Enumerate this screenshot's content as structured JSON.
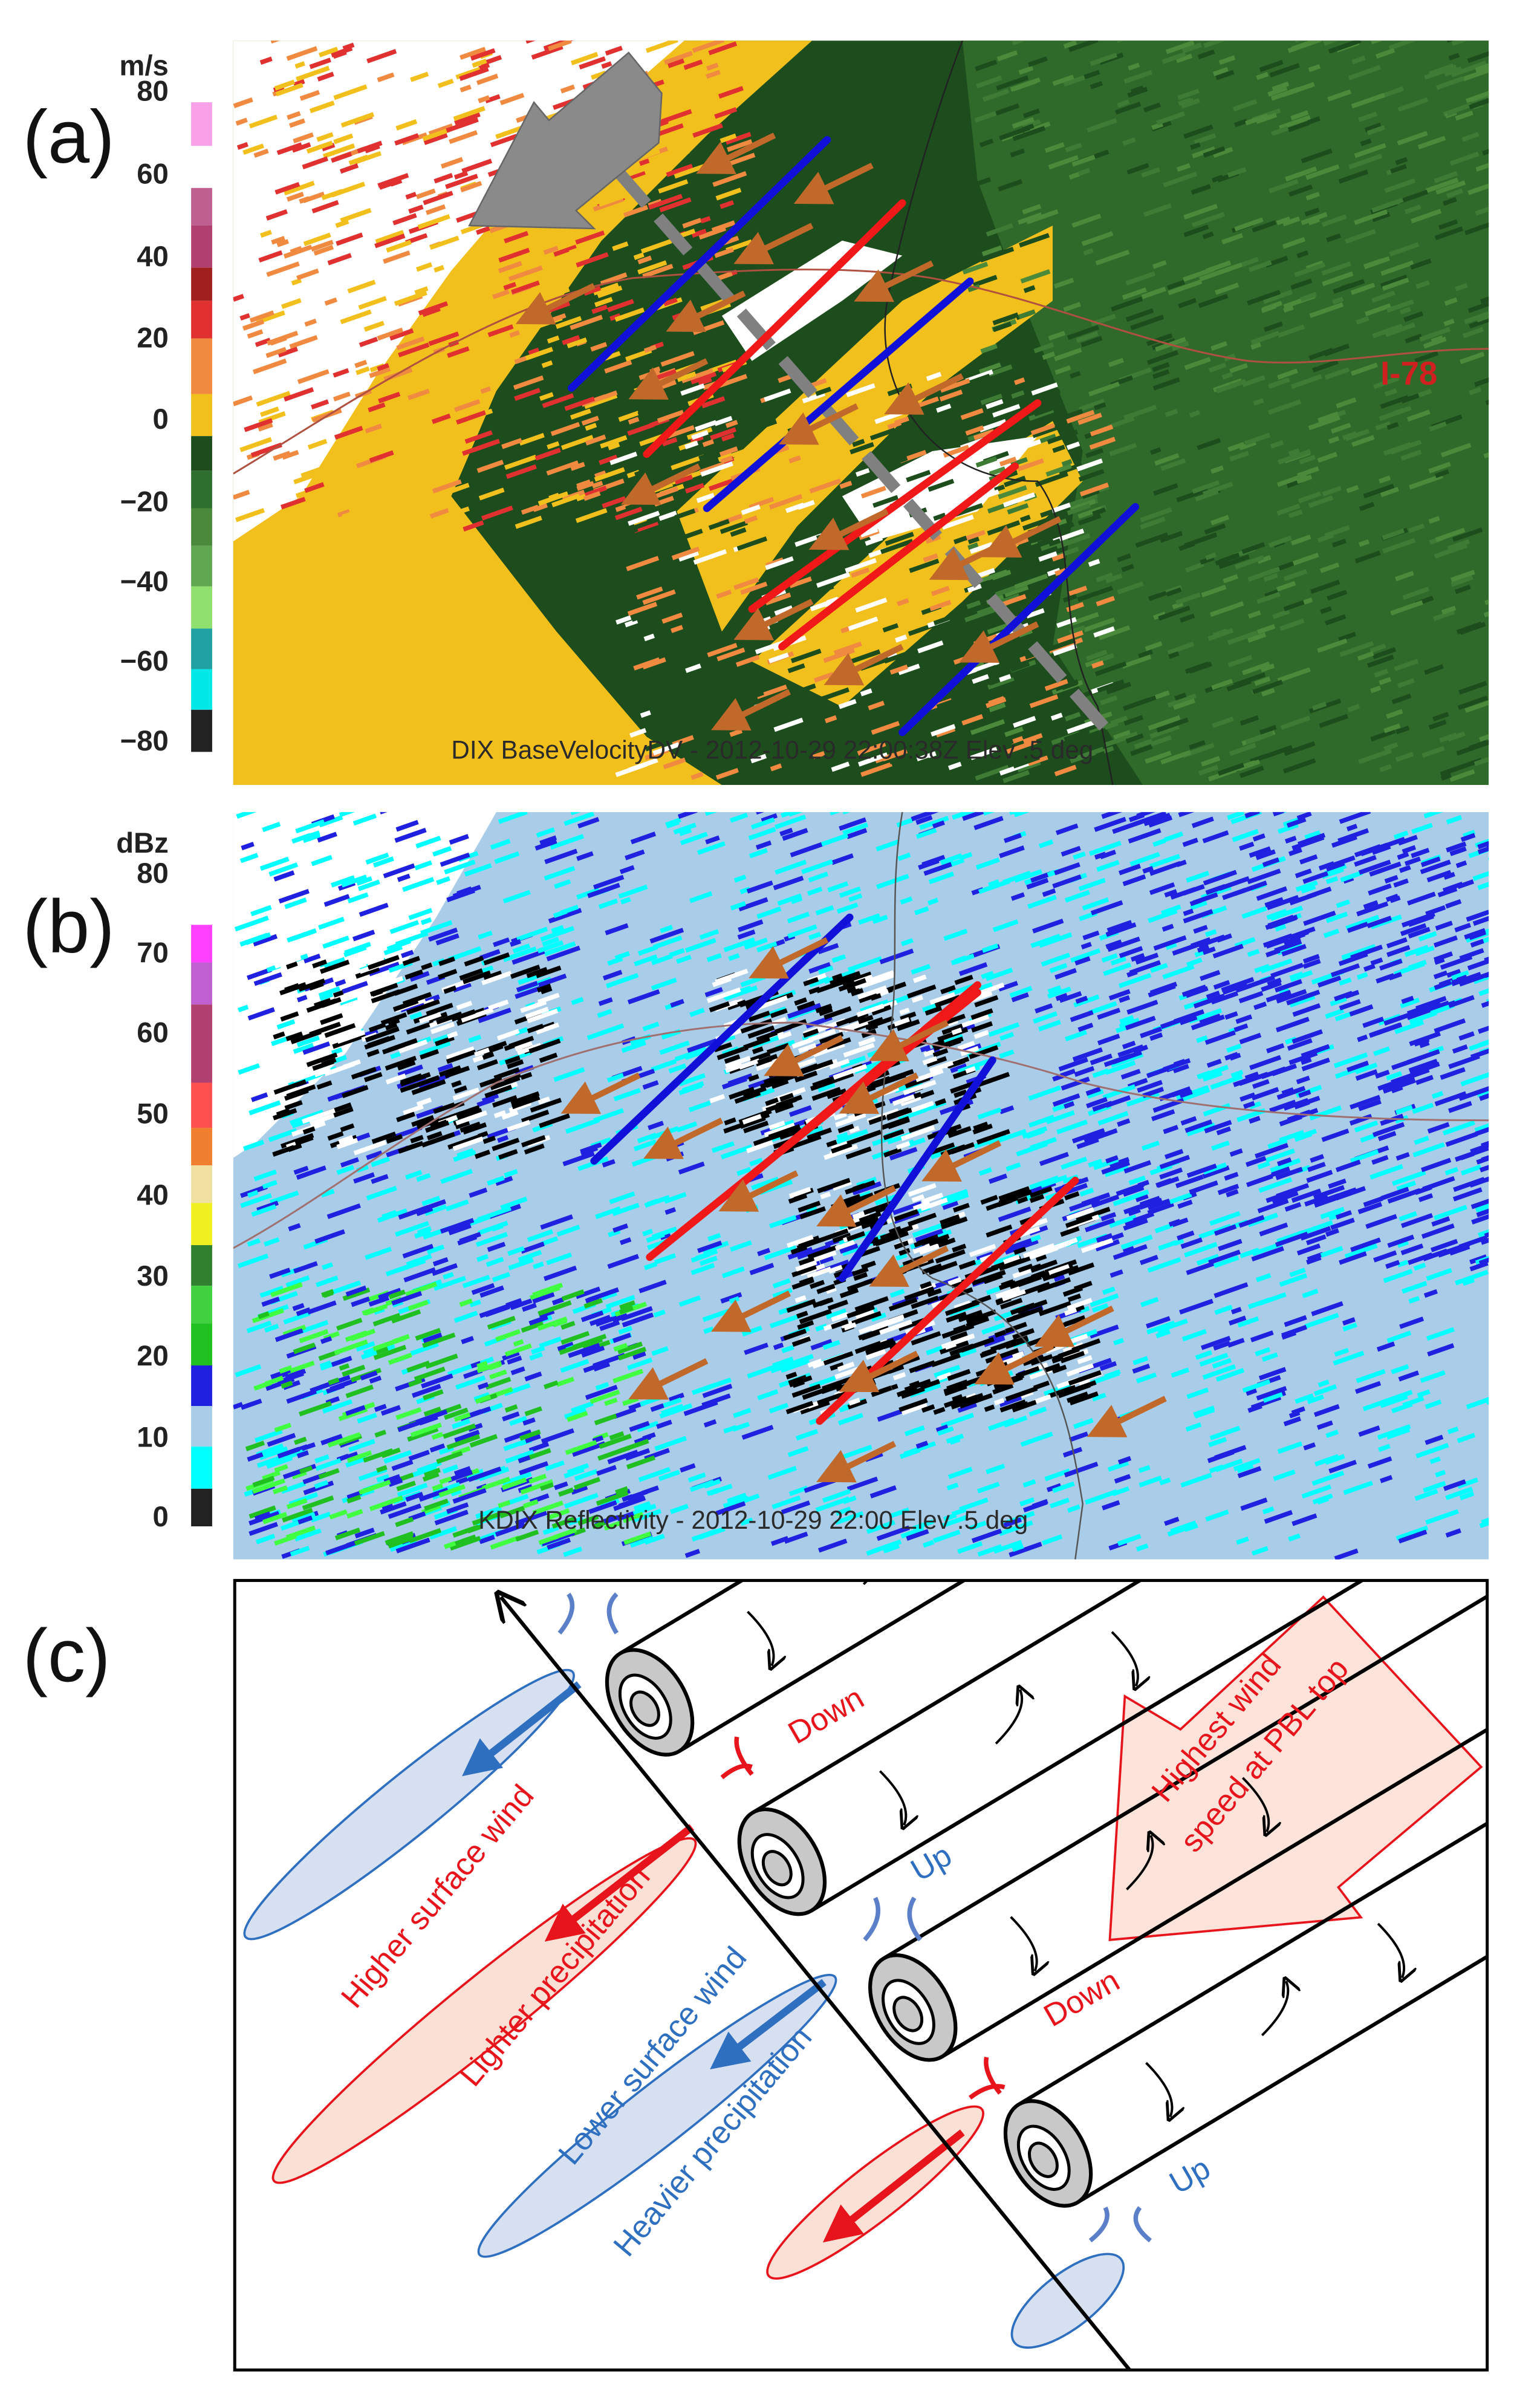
{
  "panels": {
    "a": {
      "label": "(a)",
      "colorbar": {
        "unit": "m/s",
        "labels": [
          "80",
          "60",
          "40",
          "20",
          "0",
          "−20",
          "−40",
          "−60",
          "−80"
        ]
      },
      "road_label": "I-78",
      "caption": "DIX BaseVelocityDV - 2012-10-29 22:00:38Z Elev .5 deg"
    },
    "b": {
      "label": "(b)",
      "colorbar": {
        "unit": "dBz",
        "labels": [
          "80",
          "70",
          "60",
          "50",
          "40",
          "30",
          "20",
          "10",
          "0"
        ]
      },
      "caption": "KDIX Reflectivity - 2012-10-29 22:00 Elev .5 deg"
    },
    "c": {
      "label": "(c)",
      "annotations": {
        "down_1": "Down",
        "up_1": "Up",
        "down_2": "Down",
        "up_2": "Up",
        "higher_surface_wind": "Higher surface wind",
        "lighter_precipitation": "Lighter precipitation",
        "lower_surface_wind": "Lower surface wind",
        "heavier_precipitation": "Heavier precipitation",
        "pbl_arrow": [
          "Highest wind",
          "speed at PBL top"
        ]
      }
    }
  }
}
